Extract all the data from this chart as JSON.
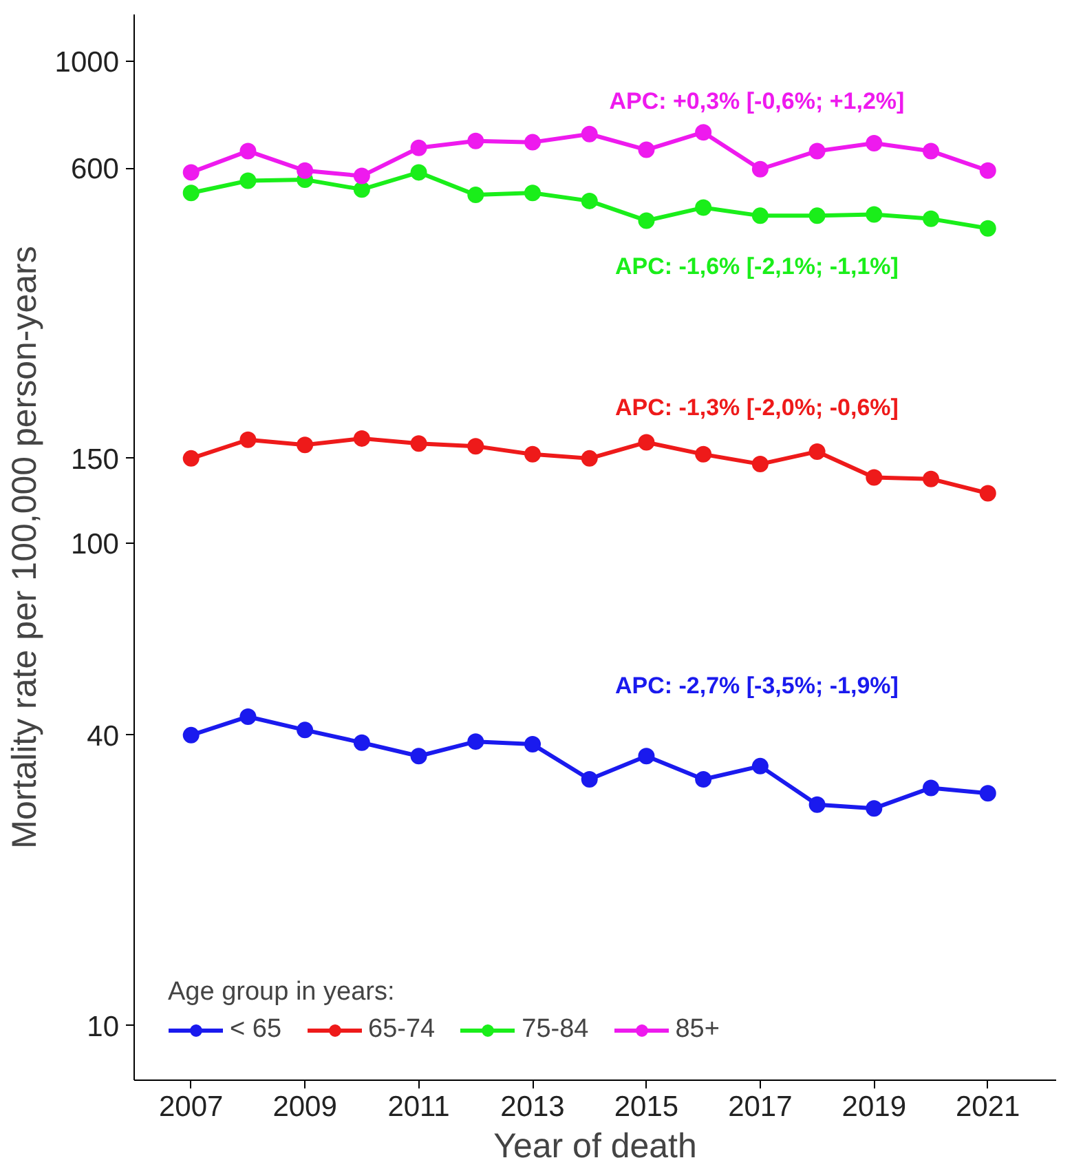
{
  "chart_data": {
    "type": "line",
    "xlabel": "Year of death",
    "ylabel": "Mortality rate per 100,000 person-years",
    "legend_title": "Age group in years:",
    "legend": "bottom left",
    "marker": "circle",
    "line_style": "solid",
    "log": "y",
    "grid": false,
    "x": [
      2007,
      2008,
      2009,
      2010,
      2011,
      2012,
      2013,
      2014,
      2015,
      2016,
      2017,
      2018,
      2019,
      2020,
      2021
    ],
    "xlim": [
      2006,
      2022.2
    ],
    "xticks": [
      2007,
      2009,
      2011,
      2013,
      2015,
      2017,
      2019,
      2021
    ],
    "ylim": [
      7.7,
      1250
    ],
    "yticks": [
      10,
      40,
      100,
      150,
      600,
      1000
    ],
    "series": [
      {
        "name": "< 65",
        "color": "#1a1aee",
        "values": [
          40,
          43.7,
          41,
          38.6,
          36.2,
          38.8,
          38.3,
          32.4,
          36.2,
          32.4,
          34.5,
          28.7,
          28.2,
          31.1,
          30.3
        ]
      },
      {
        "name": "65-74",
        "color": "#ee1a1a",
        "values": [
          150,
          164,
          160,
          165,
          161,
          159,
          153,
          150,
          162,
          153,
          146,
          155,
          137,
          136,
          127
        ]
      },
      {
        "name": "75-84",
        "color": "#1aee1a",
        "values": [
          533,
          565,
          568,
          542,
          588,
          528,
          533,
          513,
          467,
          497,
          478,
          478,
          481,
          471,
          450
        ]
      },
      {
        "name": "85+",
        "color": "#ee1aee",
        "values": [
          588,
          651,
          593,
          578,
          661,
          683,
          679,
          706,
          655,
          712,
          597,
          651,
          676,
          651,
          593
        ]
      }
    ],
    "annotations": [
      "APC: -2,7% [-3,5%; -1,9%]",
      "APC: -1,3% [-2,0%; -0,6%]",
      "APC: -1,6% [-2,1%; -1,1%]",
      "APC: +0,3% [-0,6%; +1,2%]"
    ]
  }
}
